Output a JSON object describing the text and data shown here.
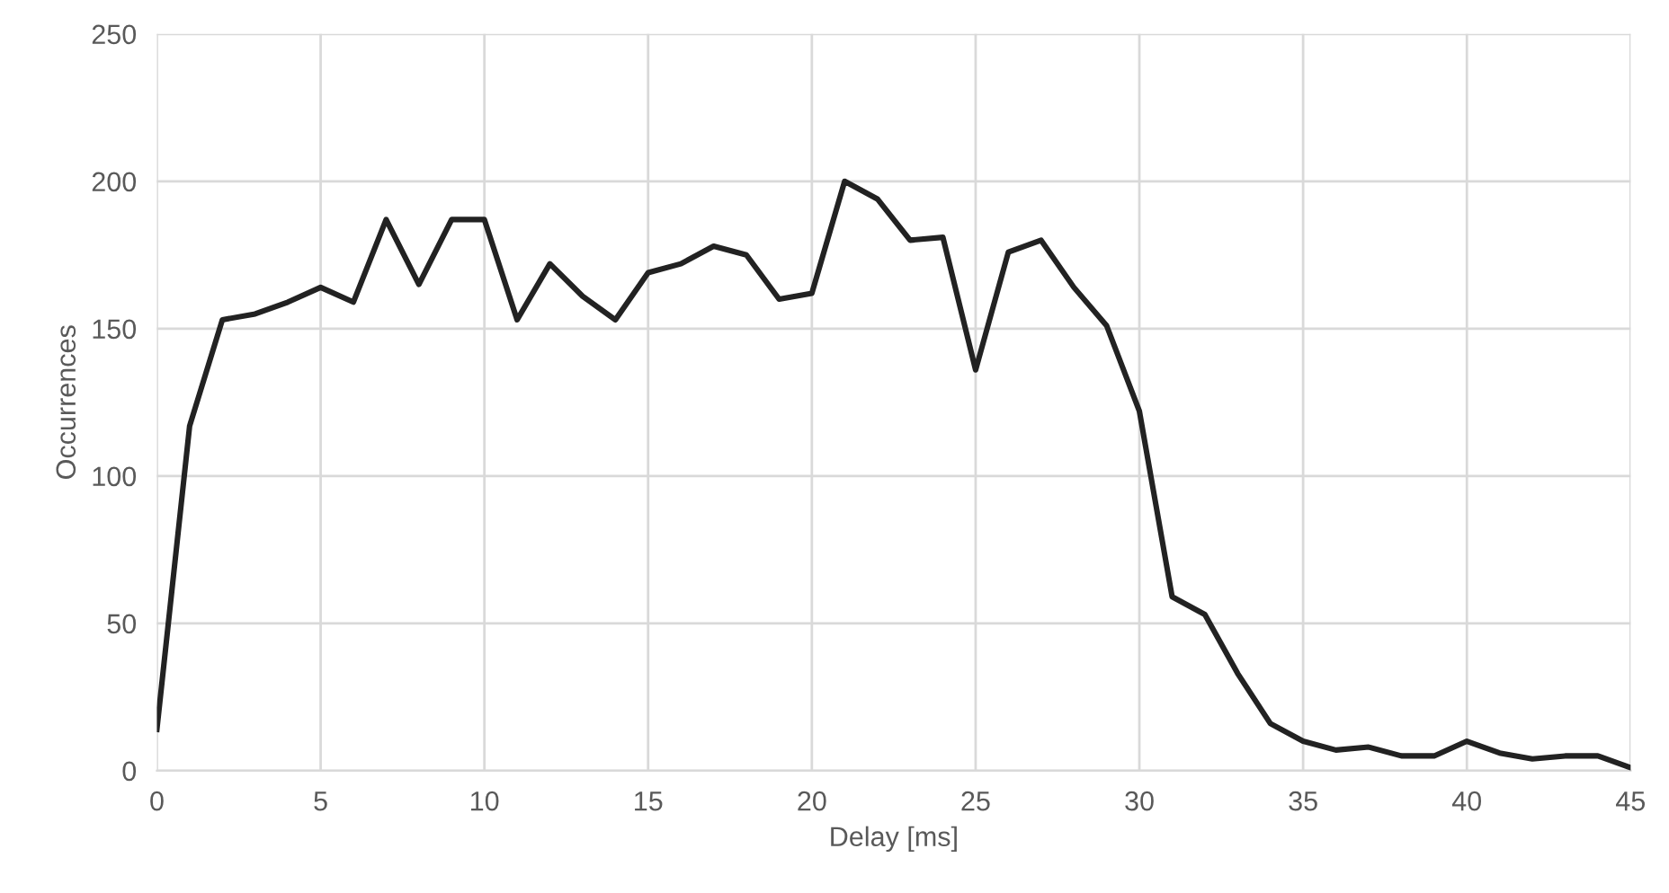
{
  "chart_data": {
    "type": "line",
    "xlabel": "Delay [ms]",
    "ylabel": "Occurrences",
    "x": [
      0,
      1,
      2,
      3,
      4,
      5,
      6,
      7,
      8,
      9,
      10,
      11,
      12,
      13,
      14,
      15,
      16,
      17,
      18,
      19,
      20,
      21,
      22,
      23,
      24,
      25,
      26,
      27,
      28,
      29,
      30,
      31,
      32,
      33,
      34,
      35,
      36,
      37,
      38,
      39,
      40,
      41,
      42,
      43,
      44,
      45
    ],
    "series": [
      {
        "color": "#222222",
        "values": [
          14,
          117,
          153,
          155,
          159,
          164,
          159,
          187,
          165,
          187,
          187,
          153,
          172,
          161,
          153,
          169,
          172,
          178,
          175,
          160,
          162,
          200,
          194,
          180,
          181,
          136,
          176,
          180,
          164,
          151,
          122,
          59,
          53,
          33,
          16,
          10,
          7,
          8,
          5,
          5,
          10,
          6,
          4,
          5,
          5,
          1
        ]
      }
    ],
    "xlim": [
      0,
      45
    ],
    "xticks": [
      0,
      5,
      10,
      15,
      20,
      25,
      30,
      35,
      40,
      45
    ],
    "ylim": [
      0,
      250
    ],
    "yticks": [
      0,
      50,
      100,
      150,
      200,
      250
    ],
    "grid": true,
    "marker": "none",
    "line_style": "solid"
  }
}
